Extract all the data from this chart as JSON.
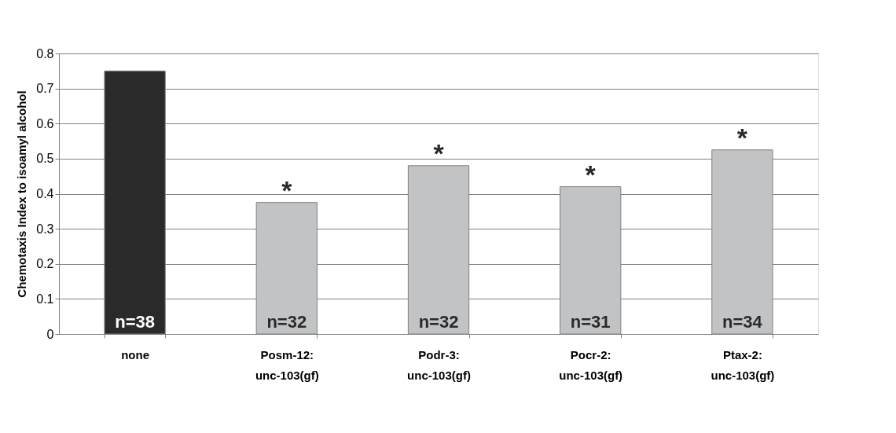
{
  "chart_data": {
    "type": "bar",
    "ylabel": "Chemotaxis Index to isoamyl alcohol",
    "categories": [
      "none",
      "Posm-12: unc-103(gf)",
      "Podr-3: unc-103(gf)",
      "Pocr-2: unc-103(gf)",
      "Ptax-2: unc-103(gf)"
    ],
    "values": [
      0.75,
      0.375,
      0.48,
      0.42,
      0.525
    ],
    "colors": [
      "#2a2a2a",
      "#c2c3c5",
      "#c2c3c5",
      "#c2c3c5",
      "#c2c3c5"
    ],
    "ylim": [
      0,
      0.8
    ],
    "yticks": [
      0,
      0.1,
      0.2,
      0.3,
      0.4,
      0.5,
      0.6,
      0.7,
      0.8
    ],
    "grid": "y",
    "annotations": [
      {
        "text": "n=38",
        "x": "none",
        "y": 0
      },
      {
        "text": "n=32",
        "x": "Posm-12: unc-103(gf)",
        "y": 0
      },
      {
        "text": "n=32",
        "x": "Podr-3: unc-103(gf)",
        "y": 0
      },
      {
        "text": "n=31",
        "x": "Pocr-2: unc-103(gf)",
        "y": 0
      },
      {
        "text": "n=34",
        "x": "Ptax-2: unc-103(gf)",
        "y": 0
      },
      {
        "text": "*",
        "x": "Posm-12: unc-103(gf)",
        "y": 0.375
      },
      {
        "text": "*",
        "x": "Podr-3: unc-103(gf)",
        "y": 0.48
      },
      {
        "text": "*",
        "x": "Pocr-2: unc-103(gf)",
        "y": 0.42
      },
      {
        "text": "*",
        "x": "Ptax-2: unc-103(gf)",
        "y": 0.525
      }
    ]
  }
}
